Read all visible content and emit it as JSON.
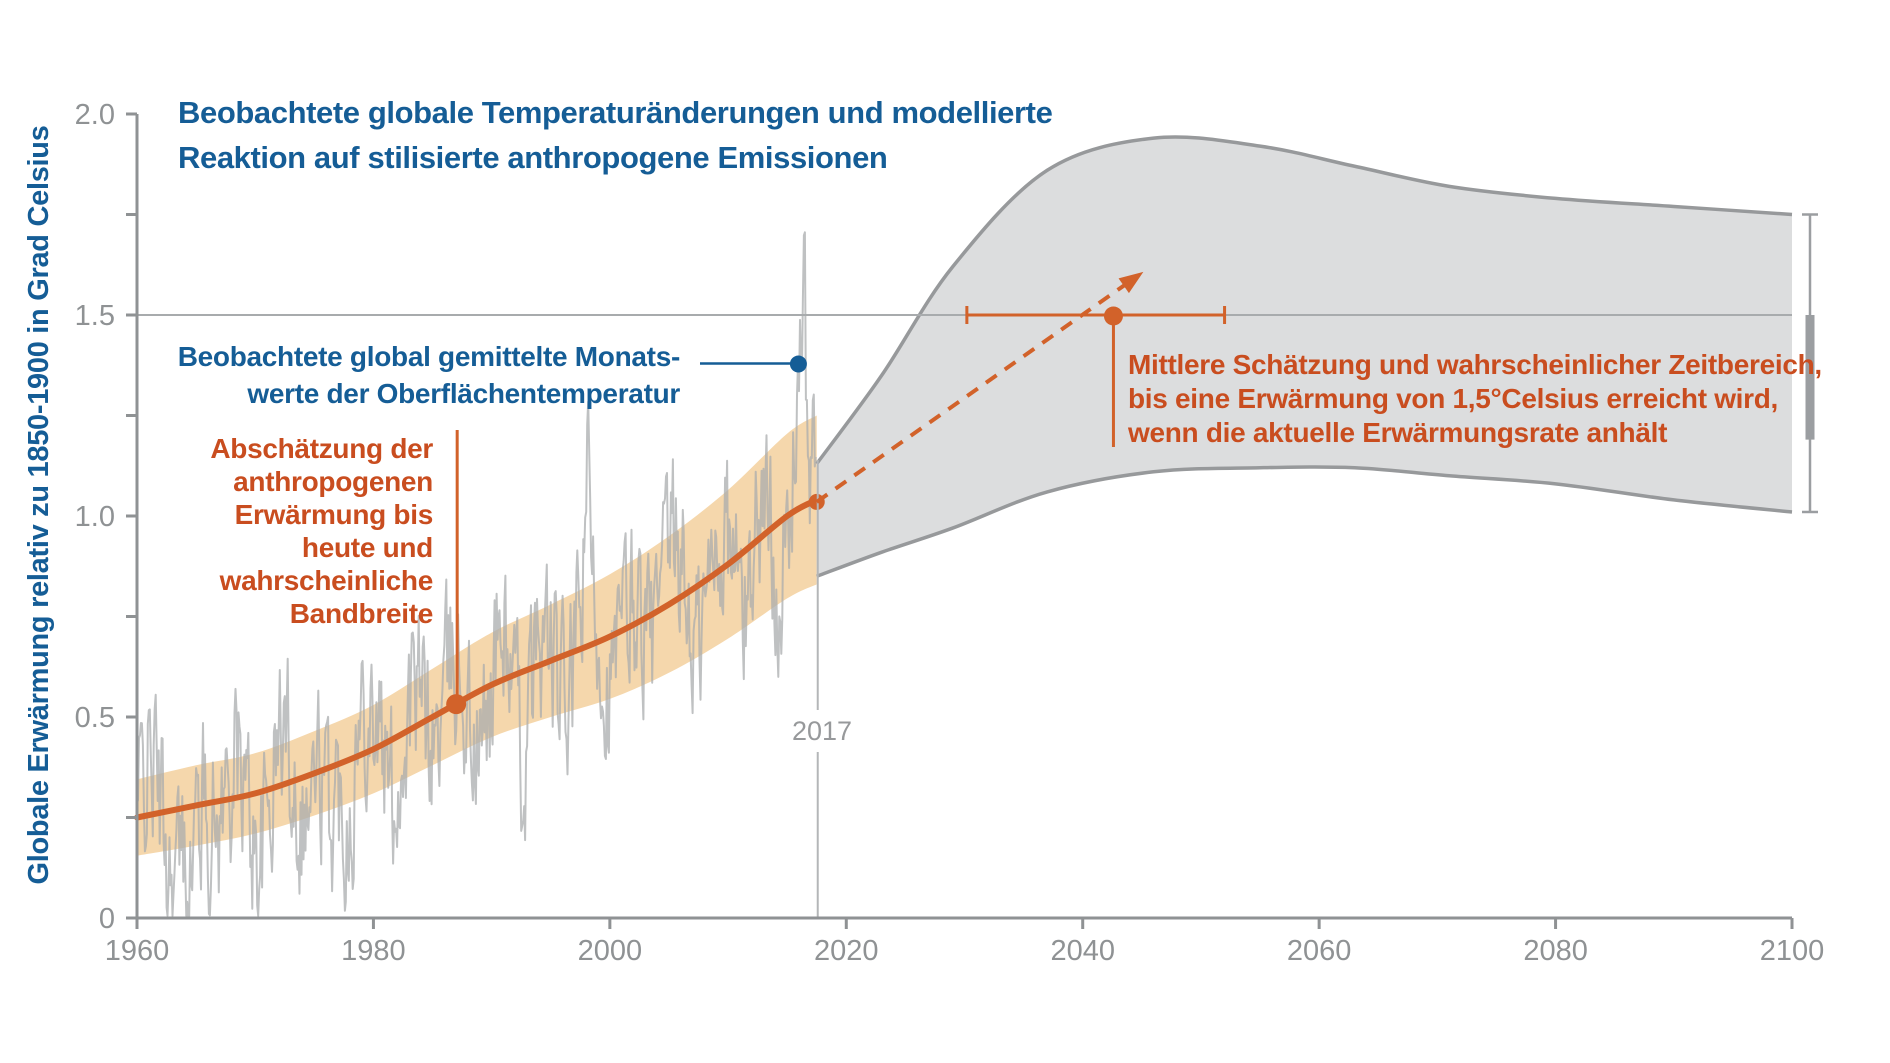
{
  "title": {
    "line1": "Beobachtete globale Temperaturänderungen und modellierte",
    "line2": "Reaktion auf stilisierte anthropogene Emissionen"
  },
  "y_axis": {
    "label": "Globale Erwärmung relativ zu 1850-1900  in Grad Celsius",
    "tick_step_minor": 0.25,
    "labeled_ticks": [
      0,
      0.5,
      1.0,
      1.5,
      2.0
    ],
    "labels": [
      "0",
      "0.5",
      "1.0",
      "1.5",
      "2.0"
    ]
  },
  "x_axis": {
    "labeled_ticks": [
      1960,
      1980,
      2000,
      2020,
      2040,
      2060,
      2080,
      2100
    ],
    "labels": [
      "1960",
      "1980",
      "2000",
      "2020",
      "2040",
      "2060",
      "2080",
      "2100"
    ]
  },
  "marker_2017": {
    "label": "2017",
    "year": 2017.5
  },
  "annotations": {
    "blue": {
      "lines": [
        "Beobachtete global gemittelte Monats-",
        "werte der Oberflächentemperatur"
      ],
      "point": {
        "year": 2015.95,
        "temp": 1.378
      }
    },
    "orange_left": {
      "lines": [
        "Abschätzung der",
        "anthropogenen",
        "Erwärmung bis",
        "heute und",
        "wahrscheinliche",
        "Bandbreite"
      ],
      "point_year": 1987
    },
    "orange_right": {
      "lines": [
        "Mittlere Schätzung und wahrscheinlicher Zeitbereich,",
        "bis eine Erwärmung von 1,5°Celsius erreicht wird,",
        "wenn die aktuelle Erwärmungsrate anhält"
      ]
    }
  },
  "chart_data": {
    "type": "line",
    "x_range": [
      1960,
      2100
    ],
    "y_range": [
      0,
      2.0
    ],
    "threshold_level": 1.5,
    "anthropogenic_warming": {
      "years": [
        1960,
        1965,
        1970,
        1975,
        1980,
        1985,
        1990,
        1995,
        2000,
        2005,
        2010,
        2015,
        2017.5
      ],
      "central": [
        0.25,
        0.28,
        0.31,
        0.36,
        0.42,
        0.5,
        0.58,
        0.64,
        0.7,
        0.78,
        0.88,
        1.0,
        1.04
      ],
      "half_width": [
        0.095,
        0.1,
        0.1,
        0.105,
        0.11,
        0.12,
        0.13,
        0.14,
        0.155,
        0.17,
        0.185,
        0.205,
        0.21
      ]
    },
    "projection_range": {
      "years": [
        2017.5,
        2023,
        2029,
        2037,
        2046,
        2055,
        2063,
        2071,
        2080,
        2090,
        2100
      ],
      "upper": [
        1.13,
        1.35,
        1.62,
        1.86,
        1.94,
        1.92,
        1.87,
        1.82,
        1.79,
        1.77,
        1.75
      ],
      "lower": [
        0.85,
        0.91,
        0.97,
        1.06,
        1.11,
        1.12,
        1.12,
        1.1,
        1.08,
        1.04,
        1.01
      ]
    },
    "crossing_1p5": {
      "level": 1.5,
      "median_year": 2042.6,
      "likely_range_years": [
        2030.2,
        2052
      ],
      "text_anchor_bottom": 447
    },
    "trend_arrow": {
      "from": {
        "year": 2017.5,
        "temp": 1.035
      },
      "to": {
        "year": 2044.3,
        "temp": 1.59
      }
    },
    "end_whisker_2100": {
      "full_range": [
        1.01,
        1.75
      ],
      "thick_range": [
        1.19,
        1.5
      ]
    },
    "observed_monthly": {
      "start_year": 1960,
      "end_year": 2017.42,
      "seed": 42,
      "ar_keep": 0.5,
      "ar_innov": 0.18,
      "osc": [
        {
          "amp": 0.1,
          "period": 3.7,
          "phase": 1.3
        },
        {
          "amp": 0.05,
          "period": 6.3,
          "phase": 0.4
        }
      ],
      "spikes": [
        {
          "year": 1964.6,
          "add": -0.18,
          "width": 0.8
        },
        {
          "year": 1976.2,
          "add": -0.16,
          "width": 0.6
        },
        {
          "year": 1992.6,
          "add": -0.17,
          "width": 0.7
        },
        {
          "year": 1998.05,
          "add": 0.3,
          "width": 0.25
        },
        {
          "year": 2011.5,
          "add": -0.12,
          "width": 0.5
        },
        {
          "year": 2015.95,
          "add": 0.36,
          "width": 0.45
        },
        {
          "year": 2016.45,
          "add": 0.22,
          "width": 0.12
        }
      ],
      "clamp_min": 0.005,
      "peak": {
        "year": 2015.95,
        "value": 1.38
      }
    }
  },
  "colors": {
    "blue": "#155d96",
    "orange": "#d2622a",
    "orange_text": "#c94d1f",
    "band_fill": "#f5d7ac",
    "wedge_fill": "#dcddde",
    "wedge_border": "#97999b",
    "observed_gray": "#a9acae",
    "threshold_gray": "#a8abad",
    "axis_gray": "#8f9294",
    "marker_gray": "#97999b",
    "whisker_gray": "#9b9ea1"
  }
}
